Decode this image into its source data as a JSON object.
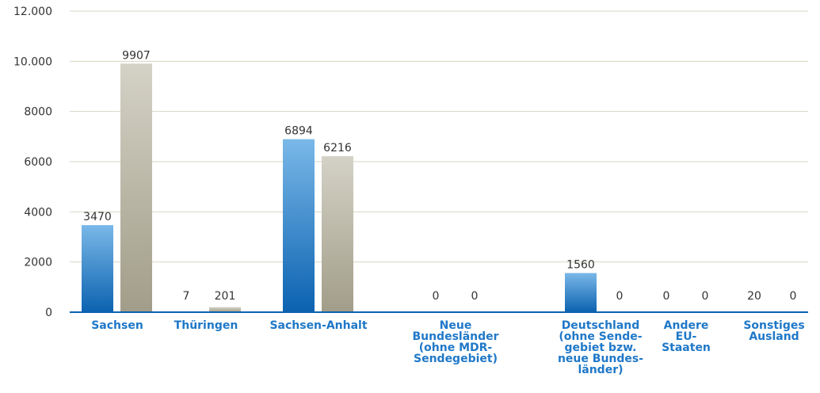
{
  "chart_data": {
    "type": "bar",
    "categories": [
      "Sachsen",
      "Thüringen",
      "Sachsen-Anhalt",
      "Neue Bundesländer\n(ohne MDR-\nSendegebiet)",
      "Deutschland\n(ohne Sende-\ngebiet bzw.\nneue Bundes-\nländer)",
      "Andere\nEU-\nStaaten",
      "Sonstiges\nAusland"
    ],
    "series": [
      {
        "color": "#1f7cc6",
        "values": [
          3470,
          7,
          6894,
          0,
          1560,
          0,
          20
        ]
      },
      {
        "color": "#b9b6a6",
        "values": [
          9907,
          201,
          6216,
          0,
          0,
          0,
          0
        ]
      }
    ],
    "ylim": [
      0,
      12000
    ],
    "yticks": [
      0,
      2000,
      4000,
      6000,
      8000,
      {
        "value": 10000,
        "label": "10.000"
      },
      {
        "value": 12000,
        "label": "12.000"
      }
    ],
    "grid": true
  }
}
